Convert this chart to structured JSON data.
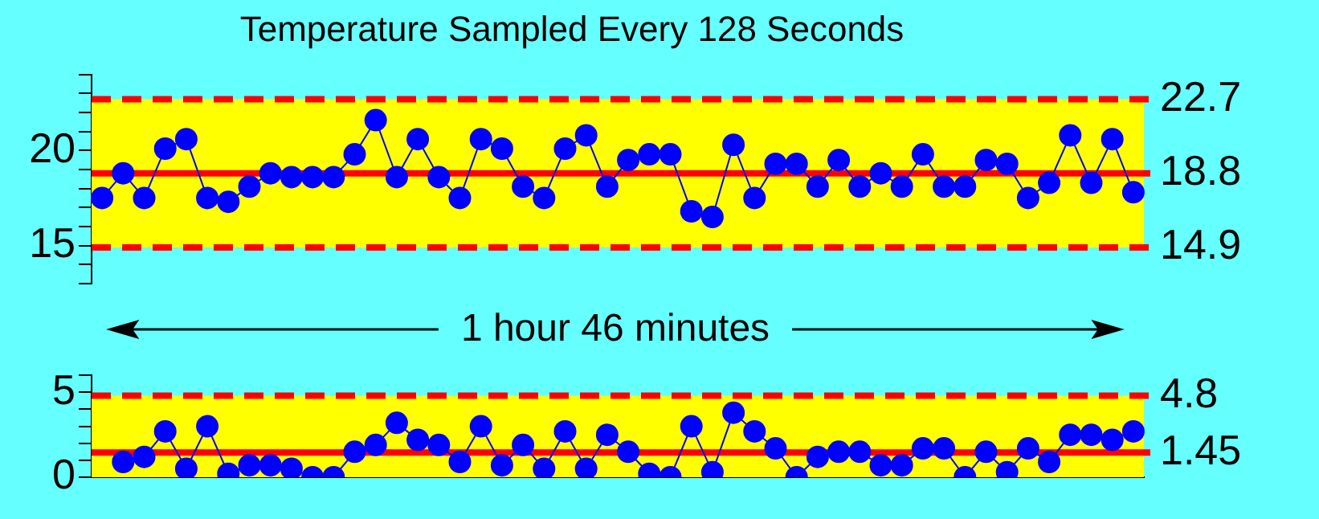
{
  "chart_data": [
    {
      "type": "line",
      "title": "Temperature Sampled Every 128 Seconds",
      "annotations": [
        "1 hour 46 minutes"
      ],
      "categories": [
        null,
        null,
        null,
        null,
        null,
        null,
        null,
        null,
        null,
        null,
        null,
        null,
        null,
        null,
        null,
        null,
        null,
        null,
        null,
        null,
        null,
        null,
        null,
        null,
        null,
        null,
        null,
        null,
        null,
        null,
        null,
        null,
        null,
        null,
        null,
        null,
        null,
        null,
        null,
        null,
        null,
        null,
        null,
        null,
        null,
        null,
        null,
        null,
        null,
        null
      ],
      "series": [
        {
          "color": "#0000ff",
          "values": [
            17.5,
            18.8,
            17.5,
            20.1,
            20.6,
            17.5,
            17.3,
            18.1,
            18.8,
            18.6,
            18.6,
            18.6,
            19.8,
            21.6,
            18.6,
            20.6,
            18.6,
            17.5,
            20.6,
            20.1,
            18.1,
            17.5,
            20.1,
            20.8,
            18.1,
            19.5,
            19.8,
            19.8,
            16.8,
            16.5,
            20.3,
            17.5,
            19.3,
            19.3,
            18.1,
            19.5,
            18.1,
            18.8,
            18.1,
            19.8,
            18.1,
            18.1,
            19.5,
            19.3,
            17.5,
            18.3,
            20.8,
            18.3,
            20.6,
            17.8
          ]
        }
      ],
      "ylim": [
        13,
        24
      ],
      "yticks": [
        {
          "value": 13,
          "label": null
        },
        {
          "value": 14,
          "label": null
        },
        15,
        {
          "value": 16,
          "label": null
        },
        {
          "value": 17,
          "label": null
        },
        {
          "value": 18,
          "label": null
        },
        {
          "value": 19,
          "label": null
        },
        20,
        {
          "value": 21,
          "label": null
        },
        {
          "value": 22,
          "label": null
        },
        {
          "value": 23,
          "label": null
        },
        {
          "value": 24,
          "label": null
        }
      ],
      "ref_lines": [
        {
          "axis": "y",
          "value": 22.7,
          "label": "22.7",
          "color": "#ff0000",
          "line_style": "dashed"
        },
        {
          "axis": "y",
          "value": 18.8,
          "label": "18.8",
          "color": "#ff0000",
          "line_style": "solid"
        },
        {
          "axis": "y",
          "value": 14.9,
          "label": "14.9",
          "color": "#ff0000",
          "line_style": "dashed"
        }
      ],
      "bands": [
        {
          "axis": "y",
          "from": 14.9,
          "to": 22.7,
          "color": "#ffff00"
        }
      ],
      "marker": "circle",
      "line_style": "solid",
      "tick_labels": "y"
    },
    {
      "type": "line",
      "categories": [
        null,
        null,
        null,
        null,
        null,
        null,
        null,
        null,
        null,
        null,
        null,
        null,
        null,
        null,
        null,
        null,
        null,
        null,
        null,
        null,
        null,
        null,
        null,
        null,
        null,
        null,
        null,
        null,
        null,
        null,
        null,
        null,
        null,
        null,
        null,
        null,
        null,
        null,
        null,
        null,
        null,
        null,
        null,
        null,
        null,
        null,
        null,
        null,
        null,
        null
      ],
      "series": [
        {
          "color": "#0000ff",
          "values": [
            null,
            0.9,
            1.2,
            2.7,
            0.5,
            3.0,
            0.2,
            0.7,
            0.7,
            0.5,
            0,
            0,
            1.5,
            1.9,
            3.2,
            2.2,
            1.9,
            0.9,
            3.0,
            0.7,
            1.9,
            0.5,
            2.7,
            0.5,
            2.5,
            1.5,
            0.2,
            0,
            3.0,
            0.3,
            3.8,
            2.7,
            1.7,
            0,
            1.2,
            1.5,
            1.5,
            0.7,
            0.7,
            1.7,
            1.7,
            0,
            1.5,
            0.3,
            1.7,
            0.9,
            2.5,
            2.5,
            2.2,
            2.7
          ]
        }
      ],
      "ylim": [
        0,
        6
      ],
      "yticks": [
        0,
        {
          "value": 1,
          "label": null
        },
        {
          "value": 2,
          "label": null
        },
        {
          "value": 3,
          "label": null
        },
        {
          "value": 4,
          "label": null
        },
        5,
        {
          "value": 6,
          "label": null
        }
      ],
      "ref_lines": [
        {
          "axis": "y",
          "value": 4.8,
          "label": "4.8",
          "color": "#ff0000",
          "line_style": "dashed"
        },
        {
          "axis": "y",
          "value": 1.45,
          "label": "1.45",
          "color": "#ff0000",
          "line_style": "solid"
        }
      ],
      "bands": [
        {
          "axis": "y",
          "from": 0,
          "to": 4.8,
          "color": "#ffff00"
        }
      ],
      "marker": "circle",
      "line_style": "solid",
      "tick_labels": "y"
    }
  ]
}
